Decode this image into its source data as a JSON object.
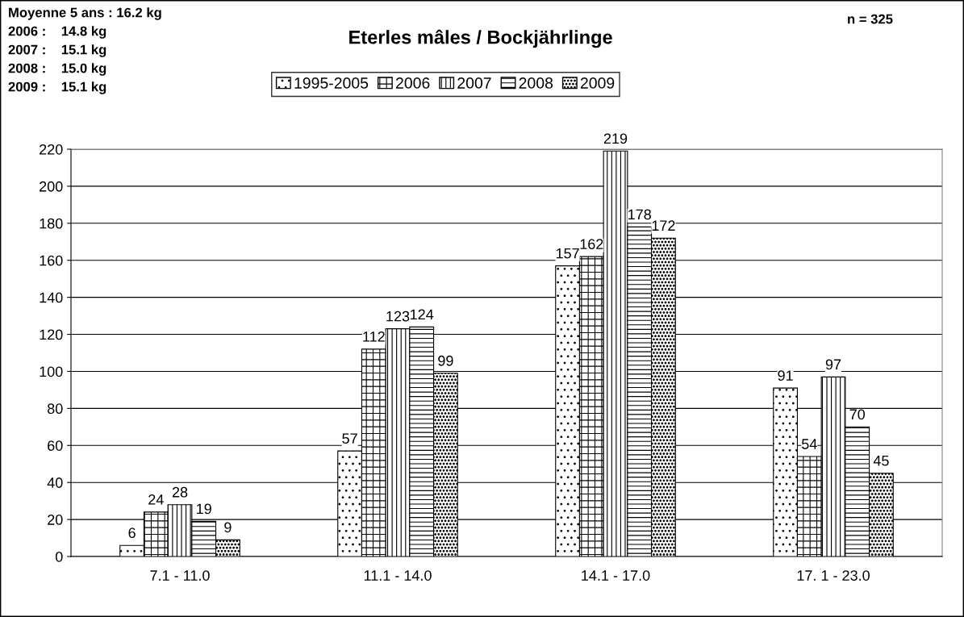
{
  "chart_data": {
    "type": "bar",
    "title": "Eterles mâles / Bockjährlinge",
    "categories": [
      "7.1 - 11.0",
      "11.1 - 14.0",
      "14.1 - 17.0",
      "17. 1 - 23.0"
    ],
    "series": [
      {
        "name": "1995-2005",
        "values": [
          6,
          57,
          157,
          91
        ]
      },
      {
        "name": "2006",
        "values": [
          24,
          112,
          162,
          54
        ]
      },
      {
        "name": "2007",
        "values": [
          28,
          123,
          219,
          97
        ]
      },
      {
        "name": "2008",
        "values": [
          19,
          124,
          178,
          70
        ]
      },
      {
        "name": "2009",
        "values": [
          9,
          99,
          172,
          45
        ]
      }
    ],
    "ylim": [
      0,
      220
    ],
    "yticks": [
      0,
      20,
      40,
      60,
      80,
      100,
      120,
      140,
      160,
      180,
      200,
      220
    ],
    "grid": "y",
    "legend": "top",
    "data_labels": true,
    "annotations": [
      "Moyenne 5 ans : 16.2 kg",
      "2006 :    14.8 kg",
      "2007 :    15.1 kg",
      "2008 :    15.0 kg",
      "2009 :    15.1 kg",
      "n = 325"
    ]
  }
}
